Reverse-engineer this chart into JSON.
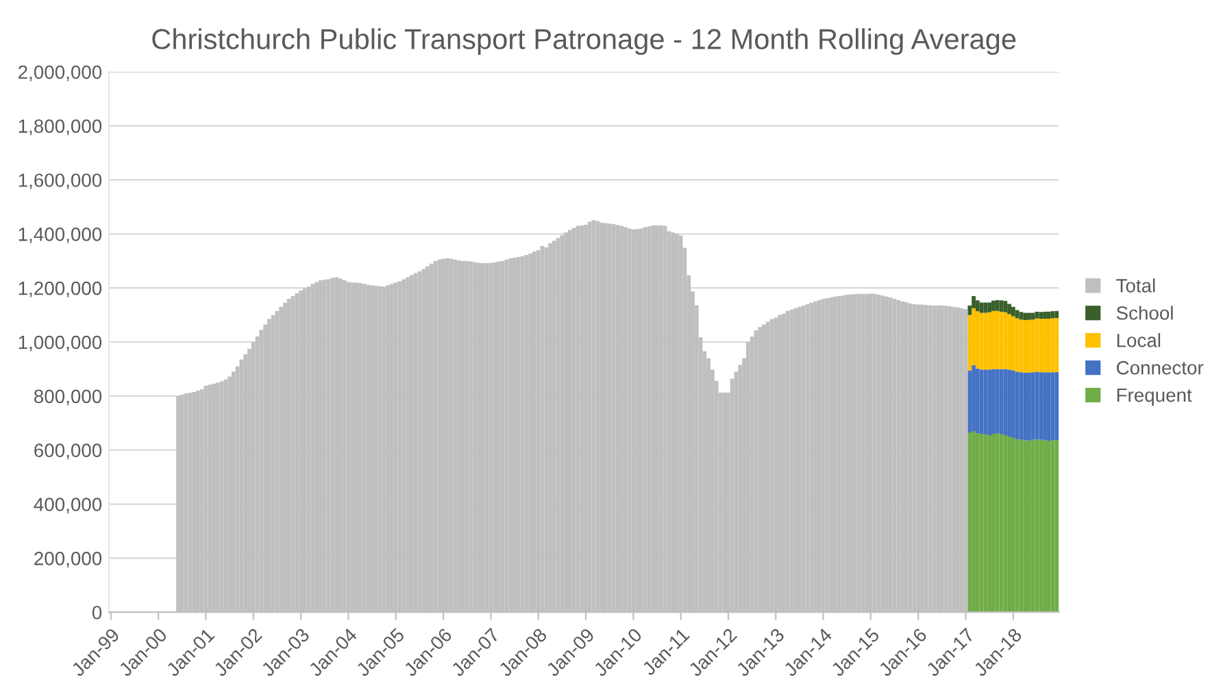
{
  "chart_data": {
    "type": "bar",
    "stacked": true,
    "title": "Christchurch Public Transport Patronage - 12 Month Rolling Average",
    "categories": [
      "Jan-99",
      null,
      null,
      null,
      null,
      null,
      null,
      null,
      null,
      null,
      null,
      null,
      "Jan-00",
      null,
      null,
      null,
      null,
      null,
      null,
      null,
      null,
      null,
      null,
      null,
      "Jan-01",
      null,
      null,
      null,
      null,
      null,
      null,
      null,
      null,
      null,
      null,
      null,
      "Jan-02",
      null,
      null,
      null,
      null,
      null,
      null,
      null,
      null,
      null,
      null,
      null,
      "Jan-03",
      null,
      null,
      null,
      null,
      null,
      null,
      null,
      null,
      null,
      null,
      null,
      "Jan-04",
      null,
      null,
      null,
      null,
      null,
      null,
      null,
      null,
      null,
      null,
      null,
      "Jan-05",
      null,
      null,
      null,
      null,
      null,
      null,
      null,
      null,
      null,
      null,
      null,
      "Jan-06",
      null,
      null,
      null,
      null,
      null,
      null,
      null,
      null,
      null,
      null,
      null,
      "Jan-07",
      null,
      null,
      null,
      null,
      null,
      null,
      null,
      null,
      null,
      null,
      null,
      "Jan-08",
      null,
      null,
      null,
      null,
      null,
      null,
      null,
      null,
      null,
      null,
      null,
      "Jan-09",
      null,
      null,
      null,
      null,
      null,
      null,
      null,
      null,
      null,
      null,
      null,
      "Jan-10",
      null,
      null,
      null,
      null,
      null,
      null,
      null,
      null,
      null,
      null,
      null,
      "Jan-11",
      null,
      null,
      null,
      null,
      null,
      null,
      null,
      null,
      null,
      null,
      null,
      "Jan-12",
      null,
      null,
      null,
      null,
      null,
      null,
      null,
      null,
      null,
      null,
      null,
      "Jan-13",
      null,
      null,
      null,
      null,
      null,
      null,
      null,
      null,
      null,
      null,
      null,
      "Jan-14",
      null,
      null,
      null,
      null,
      null,
      null,
      null,
      null,
      null,
      null,
      null,
      "Jan-15",
      null,
      null,
      null,
      null,
      null,
      null,
      null,
      null,
      null,
      null,
      null,
      "Jan-16",
      null,
      null,
      null,
      null,
      null,
      null,
      null,
      null,
      null,
      null,
      null,
      "Jan-17",
      null,
      null,
      null,
      null,
      null,
      null,
      null,
      null,
      null,
      null,
      null,
      "Jan-18",
      null,
      null,
      null,
      null,
      null,
      null,
      null,
      null,
      null,
      null,
      null
    ],
    "series": [
      {
        "name": "Frequent",
        "color": "#70ad47",
        "values": [
          null,
          null,
          null,
          null,
          null,
          null,
          null,
          null,
          null,
          null,
          null,
          null,
          null,
          null,
          null,
          null,
          null,
          null,
          null,
          null,
          null,
          null,
          null,
          null,
          null,
          null,
          null,
          null,
          null,
          null,
          null,
          null,
          null,
          null,
          null,
          null,
          null,
          null,
          null,
          null,
          null,
          null,
          null,
          null,
          null,
          null,
          null,
          null,
          null,
          null,
          null,
          null,
          null,
          null,
          null,
          null,
          null,
          null,
          null,
          null,
          null,
          null,
          null,
          null,
          null,
          null,
          null,
          null,
          null,
          null,
          null,
          null,
          null,
          null,
          null,
          null,
          null,
          null,
          null,
          null,
          null,
          null,
          null,
          null,
          null,
          null,
          null,
          null,
          null,
          null,
          null,
          null,
          null,
          null,
          null,
          null,
          null,
          null,
          null,
          null,
          null,
          null,
          null,
          null,
          null,
          null,
          null,
          null,
          null,
          null,
          null,
          null,
          null,
          null,
          null,
          null,
          null,
          null,
          null,
          null,
          null,
          null,
          null,
          null,
          null,
          null,
          null,
          null,
          null,
          null,
          null,
          null,
          null,
          null,
          null,
          null,
          null,
          null,
          null,
          null,
          null,
          null,
          null,
          null,
          null,
          null,
          null,
          null,
          null,
          null,
          null,
          null,
          null,
          null,
          null,
          null,
          null,
          null,
          null,
          null,
          null,
          null,
          null,
          null,
          null,
          null,
          null,
          null,
          null,
          null,
          null,
          null,
          null,
          null,
          null,
          null,
          null,
          null,
          null,
          null,
          null,
          null,
          null,
          null,
          null,
          null,
          null,
          null,
          null,
          null,
          null,
          null,
          null,
          null,
          null,
          null,
          null,
          null,
          null,
          null,
          null,
          null,
          null,
          null,
          null,
          null,
          null,
          null,
          null,
          null,
          null,
          null,
          null,
          null,
          null,
          null,
          null,
          665000,
          670000,
          662000,
          660000,
          658000,
          655000,
          660000,
          662000,
          660000,
          655000,
          650000,
          645000,
          640000,
          638000,
          636000,
          635000,
          638000,
          640000,
          638000,
          636000,
          635000,
          636000,
          637000
        ]
      },
      {
        "name": "Connector",
        "color": "#4472c4",
        "values": [
          null,
          null,
          null,
          null,
          null,
          null,
          null,
          null,
          null,
          null,
          null,
          null,
          null,
          null,
          null,
          null,
          null,
          null,
          null,
          null,
          null,
          null,
          null,
          null,
          null,
          null,
          null,
          null,
          null,
          null,
          null,
          null,
          null,
          null,
          null,
          null,
          null,
          null,
          null,
          null,
          null,
          null,
          null,
          null,
          null,
          null,
          null,
          null,
          null,
          null,
          null,
          null,
          null,
          null,
          null,
          null,
          null,
          null,
          null,
          null,
          null,
          null,
          null,
          null,
          null,
          null,
          null,
          null,
          null,
          null,
          null,
          null,
          null,
          null,
          null,
          null,
          null,
          null,
          null,
          null,
          null,
          null,
          null,
          null,
          null,
          null,
          null,
          null,
          null,
          null,
          null,
          null,
          null,
          null,
          null,
          null,
          null,
          null,
          null,
          null,
          null,
          null,
          null,
          null,
          null,
          null,
          null,
          null,
          null,
          null,
          null,
          null,
          null,
          null,
          null,
          null,
          null,
          null,
          null,
          null,
          null,
          null,
          null,
          null,
          null,
          null,
          null,
          null,
          null,
          null,
          null,
          null,
          null,
          null,
          null,
          null,
          null,
          null,
          null,
          null,
          null,
          null,
          null,
          null,
          null,
          null,
          null,
          null,
          null,
          null,
          null,
          null,
          null,
          null,
          null,
          null,
          null,
          null,
          null,
          null,
          null,
          null,
          null,
          null,
          null,
          null,
          null,
          null,
          null,
          null,
          null,
          null,
          null,
          null,
          null,
          null,
          null,
          null,
          null,
          null,
          null,
          null,
          null,
          null,
          null,
          null,
          null,
          null,
          null,
          null,
          null,
          null,
          null,
          null,
          null,
          null,
          null,
          null,
          null,
          null,
          null,
          null,
          null,
          null,
          null,
          null,
          null,
          null,
          null,
          null,
          null,
          null,
          null,
          null,
          null,
          null,
          null,
          230000,
          245000,
          240000,
          238000,
          240000,
          243000,
          240000,
          238000,
          240000,
          245000,
          248000,
          250000,
          250000,
          250000,
          250000,
          252000,
          250000,
          250000,
          250000,
          252000,
          253000,
          252000,
          252000
        ]
      },
      {
        "name": "Local",
        "color": "#ffc000",
        "values": [
          null,
          null,
          null,
          null,
          null,
          null,
          null,
          null,
          null,
          null,
          null,
          null,
          null,
          null,
          null,
          null,
          null,
          null,
          null,
          null,
          null,
          null,
          null,
          null,
          null,
          null,
          null,
          null,
          null,
          null,
          null,
          null,
          null,
          null,
          null,
          null,
          null,
          null,
          null,
          null,
          null,
          null,
          null,
          null,
          null,
          null,
          null,
          null,
          null,
          null,
          null,
          null,
          null,
          null,
          null,
          null,
          null,
          null,
          null,
          null,
          null,
          null,
          null,
          null,
          null,
          null,
          null,
          null,
          null,
          null,
          null,
          null,
          null,
          null,
          null,
          null,
          null,
          null,
          null,
          null,
          null,
          null,
          null,
          null,
          null,
          null,
          null,
          null,
          null,
          null,
          null,
          null,
          null,
          null,
          null,
          null,
          null,
          null,
          null,
          null,
          null,
          null,
          null,
          null,
          null,
          null,
          null,
          null,
          null,
          null,
          null,
          null,
          null,
          null,
          null,
          null,
          null,
          null,
          null,
          null,
          null,
          null,
          null,
          null,
          null,
          null,
          null,
          null,
          null,
          null,
          null,
          null,
          null,
          null,
          null,
          null,
          null,
          null,
          null,
          null,
          null,
          null,
          null,
          null,
          null,
          null,
          null,
          null,
          null,
          null,
          null,
          null,
          null,
          null,
          null,
          null,
          null,
          null,
          null,
          null,
          null,
          null,
          null,
          null,
          null,
          null,
          null,
          null,
          null,
          null,
          null,
          null,
          null,
          null,
          null,
          null,
          null,
          null,
          null,
          null,
          null,
          null,
          null,
          null,
          null,
          null,
          null,
          null,
          null,
          null,
          null,
          null,
          null,
          null,
          null,
          null,
          null,
          null,
          null,
          null,
          null,
          null,
          null,
          null,
          null,
          null,
          null,
          null,
          null,
          null,
          null,
          null,
          null,
          null,
          null,
          null,
          null,
          205000,
          210000,
          212000,
          210000,
          210000,
          212000,
          215000,
          215000,
          212000,
          210000,
          205000,
          200000,
          198000,
          195000,
          195000,
          195000,
          195000,
          197000,
          198000,
          198000,
          198000,
          200000,
          200000
        ]
      },
      {
        "name": "School",
        "color": "#3a5f2a",
        "values": [
          null,
          null,
          null,
          null,
          null,
          null,
          null,
          null,
          null,
          null,
          null,
          null,
          null,
          null,
          null,
          null,
          null,
          null,
          null,
          null,
          null,
          null,
          null,
          null,
          null,
          null,
          null,
          null,
          null,
          null,
          null,
          null,
          null,
          null,
          null,
          null,
          null,
          null,
          null,
          null,
          null,
          null,
          null,
          null,
          null,
          null,
          null,
          null,
          null,
          null,
          null,
          null,
          null,
          null,
          null,
          null,
          null,
          null,
          null,
          null,
          null,
          null,
          null,
          null,
          null,
          null,
          null,
          null,
          null,
          null,
          null,
          null,
          null,
          null,
          null,
          null,
          null,
          null,
          null,
          null,
          null,
          null,
          null,
          null,
          null,
          null,
          null,
          null,
          null,
          null,
          null,
          null,
          null,
          null,
          null,
          null,
          null,
          null,
          null,
          null,
          null,
          null,
          null,
          null,
          null,
          null,
          null,
          null,
          null,
          null,
          null,
          null,
          null,
          null,
          null,
          null,
          null,
          null,
          null,
          null,
          null,
          null,
          null,
          null,
          null,
          null,
          null,
          null,
          null,
          null,
          null,
          null,
          null,
          null,
          null,
          null,
          null,
          null,
          null,
          null,
          null,
          null,
          null,
          null,
          null,
          null,
          null,
          null,
          null,
          null,
          null,
          null,
          null,
          null,
          null,
          null,
          null,
          null,
          null,
          null,
          null,
          null,
          null,
          null,
          null,
          null,
          null,
          null,
          null,
          null,
          null,
          null,
          null,
          null,
          null,
          null,
          null,
          null,
          null,
          null,
          null,
          null,
          null,
          null,
          null,
          null,
          null,
          null,
          null,
          null,
          null,
          null,
          null,
          null,
          null,
          null,
          null,
          null,
          null,
          null,
          null,
          null,
          null,
          null,
          null,
          null,
          null,
          null,
          null,
          null,
          null,
          null,
          null,
          null,
          null,
          null,
          null,
          35000,
          45000,
          40000,
          38000,
          38000,
          36000,
          38000,
          40000,
          42000,
          42000,
          38000,
          35000,
          30000,
          28000,
          27000,
          26000,
          25000,
          25000,
          25000,
          26000,
          26000,
          26000,
          26000
        ]
      },
      {
        "name": "Total",
        "color": "#bfbfbf",
        "values": [
          null,
          null,
          null,
          null,
          null,
          null,
          null,
          null,
          null,
          null,
          null,
          null,
          null,
          null,
          null,
          null,
          null,
          800000,
          805000,
          810000,
          812000,
          815000,
          820000,
          825000,
          838000,
          842000,
          846000,
          850000,
          855000,
          862000,
          872000,
          890000,
          910000,
          935000,
          955000,
          975000,
          1000000,
          1020000,
          1045000,
          1065000,
          1085000,
          1100000,
          1115000,
          1130000,
          1145000,
          1160000,
          1170000,
          1180000,
          1190000,
          1198000,
          1205000,
          1215000,
          1222000,
          1228000,
          1230000,
          1233000,
          1238000,
          1240000,
          1235000,
          1228000,
          1222000,
          1220000,
          1220000,
          1218000,
          1215000,
          1212000,
          1210000,
          1208000,
          1206000,
          1205000,
          1210000,
          1215000,
          1220000,
          1225000,
          1232000,
          1240000,
          1248000,
          1255000,
          1262000,
          1270000,
          1280000,
          1290000,
          1300000,
          1305000,
          1308000,
          1310000,
          1308000,
          1305000,
          1302000,
          1300000,
          1300000,
          1298000,
          1295000,
          1293000,
          1292000,
          1292000,
          1293000,
          1295000,
          1298000,
          1300000,
          1305000,
          1310000,
          1312000,
          1315000,
          1318000,
          1322000,
          1328000,
          1335000,
          1340000,
          1355000,
          1350000,
          1365000,
          1375000,
          1385000,
          1395000,
          1405000,
          1415000,
          1422000,
          1430000,
          1432000,
          1434000,
          1445000,
          1451000,
          1448000,
          1442000,
          1440000,
          1438000,
          1436000,
          1433000,
          1430000,
          1425000,
          1420000,
          1417000,
          1418000,
          1420000,
          1425000,
          1428000,
          1431000,
          1432000,
          1431000,
          1430000,
          1410000,
          1405000,
          1400000,
          1394000,
          1349000,
          1247000,
          1187000,
          1136000,
          1017000,
          966000,
          940000,
          898000,
          856000,
          813000,
          813000,
          813000,
          864000,
          890000,
          915000,
          940000,
          1000000,
          1020000,
          1043000,
          1055000,
          1065000,
          1075000,
          1085000,
          1090000,
          1100000,
          1105000,
          1115000,
          1120000,
          1125000,
          1130000,
          1135000,
          1140000,
          1145000,
          1150000,
          1155000,
          1160000,
          1162000,
          1165000,
          1168000,
          1170000,
          1172000,
          1175000,
          1176000,
          1177000,
          1178000,
          1178000,
          1178000,
          1179000,
          1178000,
          1175000,
          1172000,
          1168000,
          1165000,
          1160000,
          1155000,
          1150000,
          1147000,
          1143000,
          1140000,
          1139000,
          1138000,
          1137000,
          1136000,
          1135000,
          1135000,
          1136000,
          1134000,
          1132000,
          1130000,
          1128000,
          1125000,
          1122000,
          null,
          null,
          null,
          null,
          null,
          null,
          null,
          null,
          null,
          null,
          null,
          null,
          null,
          null,
          null,
          null,
          null,
          null,
          null,
          null,
          null,
          null,
          null
        ]
      }
    ],
    "ylim": [
      0,
      2000000
    ],
    "yticks": [
      0,
      {
        "value": 200000,
        "label": "200,000"
      },
      {
        "value": 400000,
        "label": "400,000"
      },
      {
        "value": 600000,
        "label": "600,000"
      },
      {
        "value": 800000,
        "label": "800,000"
      },
      {
        "value": 1000000,
        "label": "1,000,000"
      },
      {
        "value": 1200000,
        "label": "1,200,000"
      },
      {
        "value": 1400000,
        "label": "1,400,000"
      },
      {
        "value": 1600000,
        "label": "1,600,000"
      },
      {
        "value": 1800000,
        "label": "1,800,000"
      },
      {
        "value": 2000000,
        "label": "2,000,000"
      }
    ],
    "grid": "y",
    "legend": "right"
  }
}
